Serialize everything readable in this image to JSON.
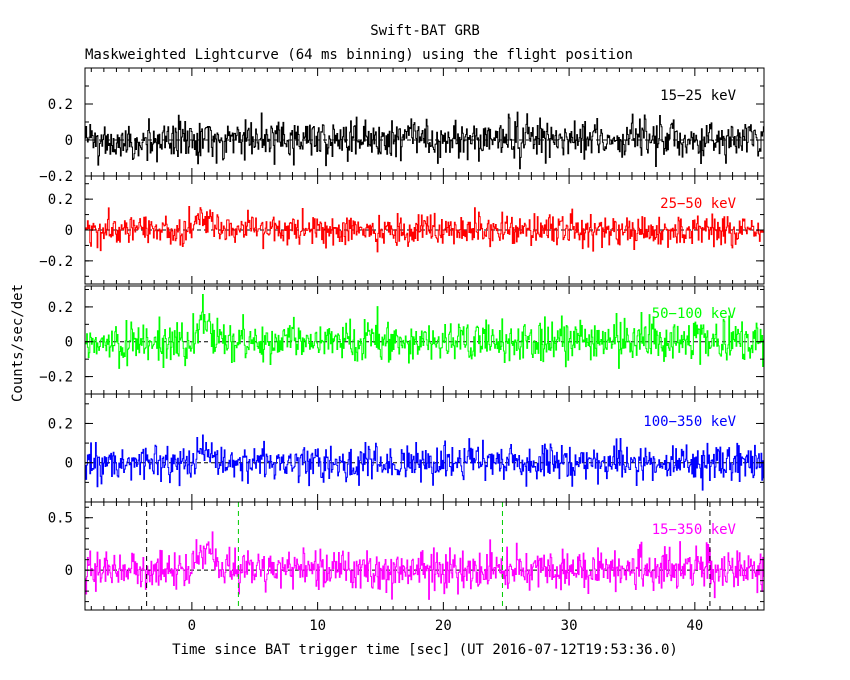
{
  "chart_data": {
    "type": "line",
    "title": "Swift-BAT GRB",
    "subtitle": "Maskweighted Lightcurve (64 ms binning) using the flight position",
    "xlabel": "Time since BAT trigger time [sec] (UT 2016-07-12T19:53:36.0)",
    "ylabel": "Counts/sec/det",
    "xlim": [
      -8.5,
      45.5
    ],
    "xticks": [
      0,
      10,
      20,
      30,
      40
    ],
    "bin_seconds": 0.064,
    "panels": [
      {
        "name": "15-25 keV",
        "label": "15−25 keV",
        "color": "#000000",
        "ylim": [
          -0.2,
          0.4
        ],
        "yticks": [
          -0.2,
          0,
          0.2
        ],
        "ytick_labels": [
          "−0.2",
          "0",
          "0.2"
        ],
        "noise_sigma": 0.055,
        "pulses": []
      },
      {
        "name": "25-50 keV",
        "label": "25−50 keV",
        "color": "#ff0000",
        "ylim": [
          -0.35,
          0.35
        ],
        "yticks": [
          -0.2,
          0,
          0.2
        ],
        "ytick_labels": [
          "−0.2",
          "0",
          "0.2"
        ],
        "noise_sigma": 0.05,
        "pulses": [
          {
            "t_start": 0.0,
            "t_peak": 0.5,
            "t_end": 2.2,
            "amp": 0.1
          }
        ]
      },
      {
        "name": "50-100 keV",
        "label": "50−100 keV",
        "color": "#00ff00",
        "ylim": [
          -0.3,
          0.32
        ],
        "yticks": [
          -0.2,
          0,
          0.2
        ],
        "ytick_labels": [
          "−0.2",
          "0",
          "0.2"
        ],
        "noise_sigma": 0.055,
        "pulses": [
          {
            "t_start": 0.0,
            "t_peak": 0.8,
            "t_end": 2.5,
            "amp": 0.12
          }
        ]
      },
      {
        "name": "100-350 keV",
        "label": "100−350 keV",
        "color": "#0000ff",
        "ylim": [
          -0.2,
          0.35
        ],
        "yticks": [
          0,
          0.2
        ],
        "ytick_labels": [
          "0",
          "0.2"
        ],
        "noise_sigma": 0.045,
        "pulses": [
          {
            "t_start": -0.2,
            "t_peak": 0.6,
            "t_end": 2.5,
            "amp": 0.08
          }
        ]
      },
      {
        "name": "15-350 keV",
        "label": "15−350 keV",
        "color": "#ff00ff",
        "ylim": [
          -0.38,
          0.65
        ],
        "yticks": [
          0,
          0.5
        ],
        "ytick_labels": [
          "0",
          "0.5"
        ],
        "noise_sigma": 0.1,
        "pulses": [
          {
            "t_start": -0.1,
            "t_peak": 0.7,
            "t_end": 2.4,
            "amp": 0.25
          }
        ],
        "markers": [
          {
            "t": -3.6,
            "color": "#000000"
          },
          {
            "t": 3.7,
            "color": "#00cc00"
          },
          {
            "t": 24.7,
            "color": "#00cc00"
          },
          {
            "t": 41.2,
            "color": "#000000"
          }
        ]
      }
    ]
  }
}
